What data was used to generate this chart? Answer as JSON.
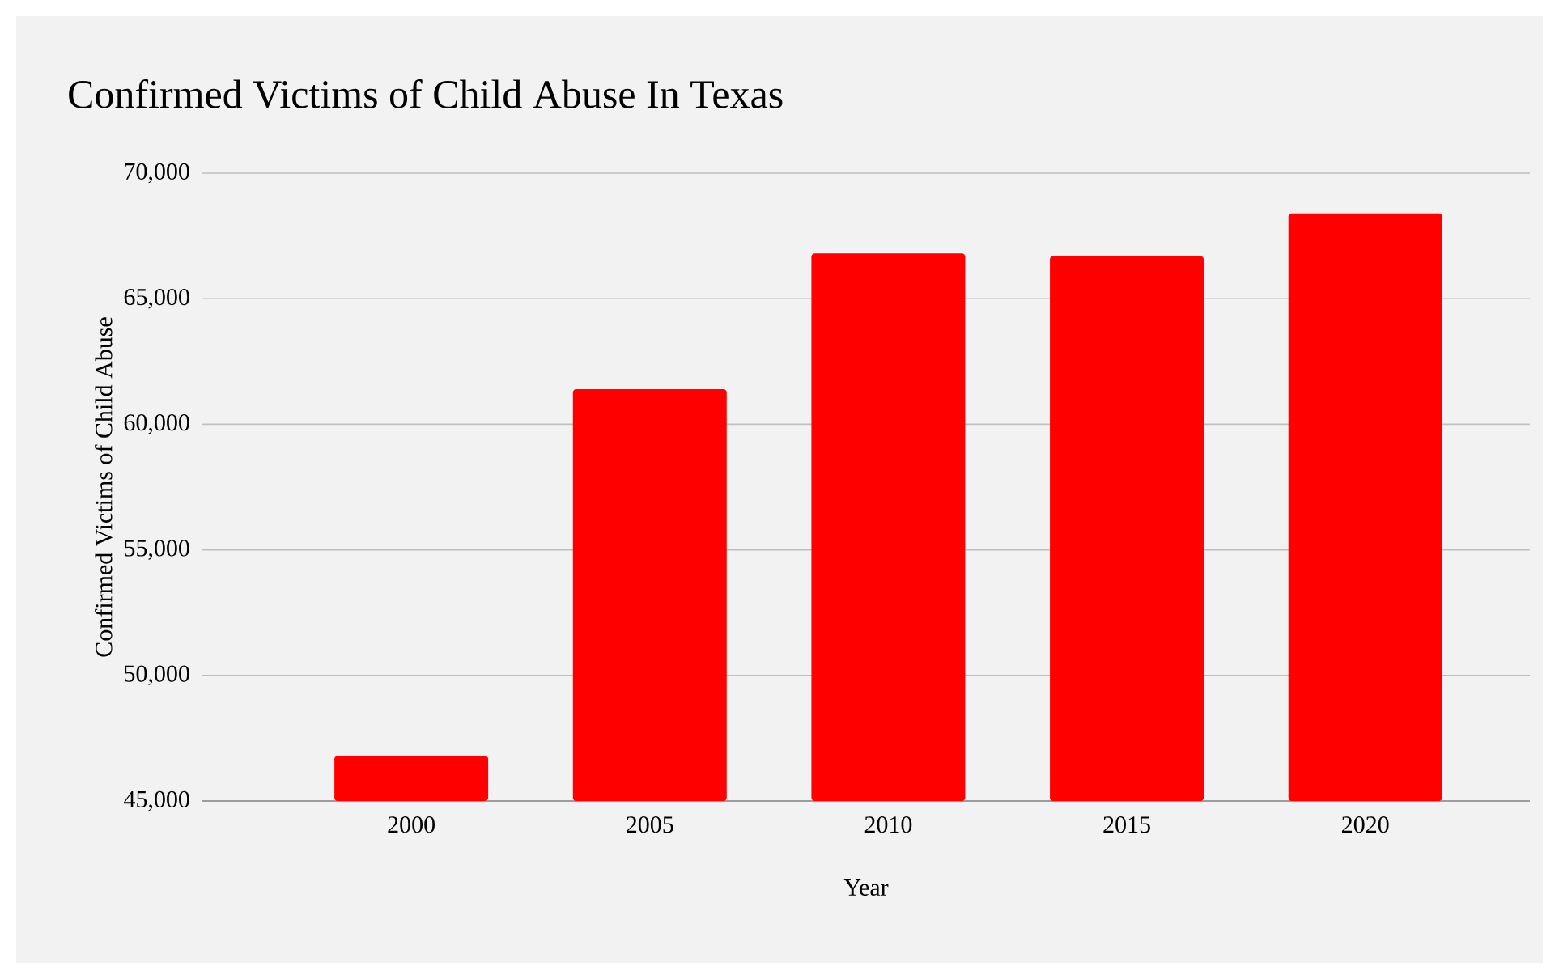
{
  "chart_data": {
    "type": "bar",
    "title": "Confirmed Victims of Child Abuse In Texas",
    "xlabel": "Year",
    "ylabel": "Confirmed Victims of Child Abuse",
    "categories": [
      "2000",
      "2005",
      "2010",
      "2015",
      "2020"
    ],
    "values": [
      46800,
      61400,
      66800,
      66700,
      68400
    ],
    "color": "#ff0000",
    "ylim": [
      45000,
      70000
    ],
    "yticks": [
      {
        "value": 45000,
        "label": "45,000"
      },
      {
        "value": 50000,
        "label": "50,000"
      },
      {
        "value": 55000,
        "label": "55,000"
      },
      {
        "value": 60000,
        "label": "60,000"
      },
      {
        "value": 65000,
        "label": "65,000"
      },
      {
        "value": 70000,
        "label": "70,000"
      }
    ],
    "grid": "y"
  }
}
